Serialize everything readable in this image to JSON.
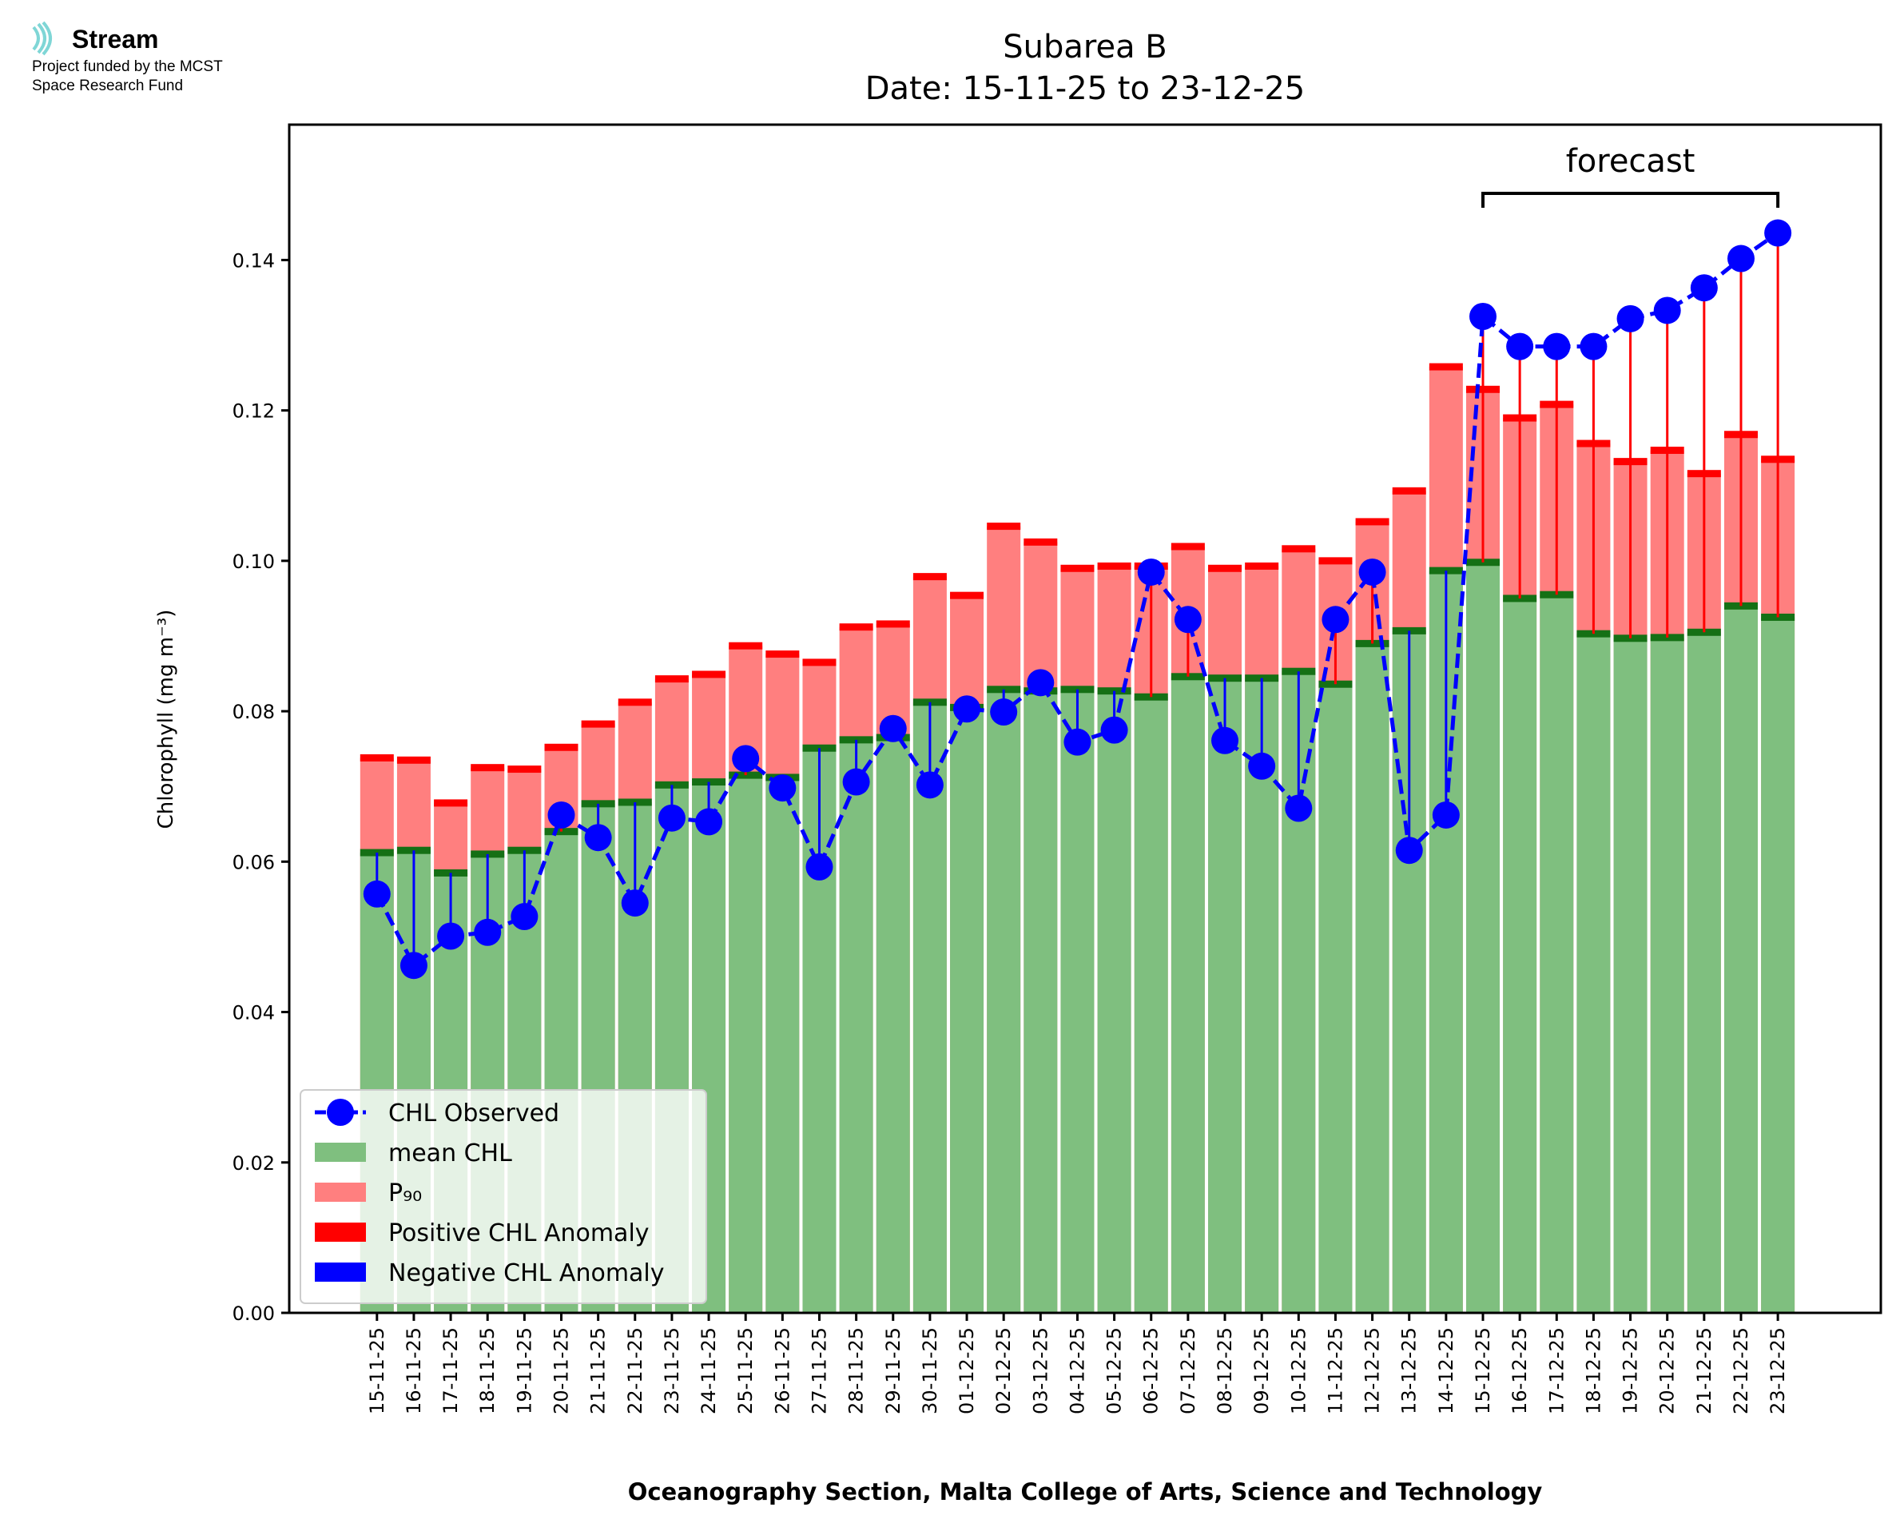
{
  "logo": {
    "name": "Stream",
    "line1": "Project funded by the MCST",
    "line2": "Space Research Fund"
  },
  "chart_data": {
    "type": "bar",
    "title": "Subarea B",
    "subtitle": "Date: 15-11-25 to 23-12-25",
    "xlabel": "Oceanography Section, Malta College of Arts, Science and Technology",
    "ylabel": "Chlorophyll (mg m⁻³)",
    "ylim": [
      0,
      0.158
    ],
    "yticks": [
      "0.00",
      "0.02",
      "0.04",
      "0.06",
      "0.08",
      "0.10",
      "0.12",
      "0.14"
    ],
    "grid": false,
    "legend_position": "lower-left",
    "categories": [
      "15-11-25",
      "16-11-25",
      "17-11-25",
      "18-11-25",
      "19-11-25",
      "20-11-25",
      "21-11-25",
      "22-11-25",
      "23-11-25",
      "24-11-25",
      "25-11-25",
      "26-11-25",
      "27-11-25",
      "28-11-25",
      "29-11-25",
      "30-11-25",
      "01-12-25",
      "02-12-25",
      "03-12-25",
      "04-12-25",
      "05-12-25",
      "06-12-25",
      "07-12-25",
      "08-12-25",
      "09-12-25",
      "10-12-25",
      "11-12-25",
      "12-12-25",
      "13-12-25",
      "14-12-25",
      "15-12-25",
      "16-12-25",
      "17-12-25",
      "18-12-25",
      "19-12-25",
      "20-12-25",
      "21-12-25",
      "22-12-25",
      "23-12-25"
    ],
    "series": [
      {
        "name": "mean CHL",
        "color": "#7fbf7f",
        "edge_color": "#157015",
        "values": [
          0.0612,
          0.0615,
          0.0585,
          0.061,
          0.0615,
          0.064,
          0.0677,
          0.0679,
          0.0702,
          0.0706,
          0.0715,
          0.0712,
          0.0751,
          0.0762,
          0.0765,
          0.0812,
          0.0805,
          0.0829,
          0.0827,
          0.0829,
          0.0827,
          0.0819,
          0.0846,
          0.0844,
          0.0844,
          0.0853,
          0.0836,
          0.089,
          0.0907,
          0.0987,
          0.0998,
          0.095,
          0.0955,
          0.0903,
          0.0897,
          0.0898,
          0.0905,
          0.094,
          0.0925
        ]
      },
      {
        "name": "P₉₀",
        "color": "#ff7f7f",
        "edge_color": "#ff0000",
        "values": [
          0.0738,
          0.0735,
          0.0678,
          0.0725,
          0.0723,
          0.0752,
          0.0783,
          0.0812,
          0.0843,
          0.0849,
          0.0887,
          0.0876,
          0.0865,
          0.0912,
          0.0916,
          0.0979,
          0.0954,
          0.1046,
          0.1025,
          0.099,
          0.0993,
          0.0993,
          0.1019,
          0.099,
          0.0993,
          0.1016,
          0.1,
          0.1052,
          0.1093,
          0.1258,
          0.1228,
          0.119,
          0.1208,
          0.1156,
          0.1132,
          0.1147,
          0.1116,
          0.1168,
          0.1135
        ]
      },
      {
        "name": "CHL Observed",
        "color": "#0000ff",
        "values": [
          0.0557,
          0.0462,
          0.0501,
          0.0506,
          0.0527,
          0.0662,
          0.0632,
          0.0545,
          0.0658,
          0.0653,
          0.0737,
          0.0698,
          0.0593,
          0.0706,
          0.0777,
          0.0702,
          0.0803,
          0.0799,
          0.0838,
          0.0759,
          0.0775,
          0.0985,
          0.0922,
          0.0761,
          0.0727,
          0.0671,
          0.0922,
          0.0985,
          0.0615,
          0.0662,
          0.1325,
          0.1285,
          0.1285,
          0.1285,
          0.1322,
          0.1333,
          0.1363,
          0.1402,
          0.1436
        ]
      }
    ],
    "legend": [
      {
        "label": "CHL Observed",
        "kind": "line-marker",
        "color": "#0000ff"
      },
      {
        "label": "mean CHL",
        "kind": "patch",
        "color": "#7fbf7f"
      },
      {
        "label": "P₉₀",
        "kind": "patch",
        "color": "#ff7f7f"
      },
      {
        "label": "Positive CHL Anomaly",
        "kind": "patch",
        "color": "#ff0000"
      },
      {
        "label": "Negative CHL Anomaly",
        "kind": "patch",
        "color": "#0000ff"
      }
    ],
    "annotation": {
      "label": "forecast",
      "from_category": "15-12-25",
      "to_category": "23-12-25"
    }
  }
}
